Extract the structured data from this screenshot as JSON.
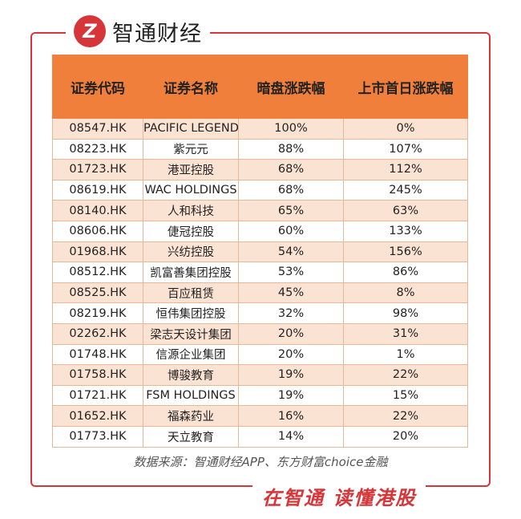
{
  "brand": {
    "logo_letter": "Z",
    "name": "智通财经",
    "watermark": "智通财经"
  },
  "table": {
    "headers": [
      "证券代码",
      "证券名称",
      "暗盘涨跌幅",
      "上市首日涨跌幅"
    ],
    "rows": [
      [
        "08547.HK",
        "PACIFIC LEGEND",
        "100%",
        "0%"
      ],
      [
        "08223.HK",
        "紫元元",
        "88%",
        "107%"
      ],
      [
        "01723.HK",
        "港亚控股",
        "68%",
        "112%"
      ],
      [
        "08619.HK",
        "WAC HOLDINGS",
        "68%",
        "245%"
      ],
      [
        "08140.HK",
        "人和科技",
        "65%",
        "63%"
      ],
      [
        "08606.HK",
        "倢冠控股",
        "60%",
        "133%"
      ],
      [
        "01968.HK",
        "兴纺控股",
        "54%",
        "156%"
      ],
      [
        "08512.HK",
        "凯富善集团控股",
        "53%",
        "86%"
      ],
      [
        "08525.HK",
        "百应租赁",
        "45%",
        "8%"
      ],
      [
        "08219.HK",
        "恒伟集团控股",
        "32%",
        "98%"
      ],
      [
        "02262.HK",
        "梁志天设计集团",
        "20%",
        "31%"
      ],
      [
        "01748.HK",
        "信源企业集团",
        "20%",
        "1%"
      ],
      [
        "01758.HK",
        "博骏教育",
        "19%",
        "22%"
      ],
      [
        "01721.HK",
        "FSM HOLDINGS",
        "19%",
        "15%"
      ],
      [
        "01652.HK",
        "福森药业",
        "16%",
        "22%"
      ],
      [
        "01773.HK",
        "天立教育",
        "14%",
        "20%"
      ]
    ]
  },
  "source_note": "数据来源：智通财经APP、东方财富choice金融",
  "slogan": "在智通 读懂港股",
  "colors": {
    "accent_red": "#d6363a",
    "header_orange": "#f07f3c",
    "row_shade": "#fbe3d3"
  }
}
